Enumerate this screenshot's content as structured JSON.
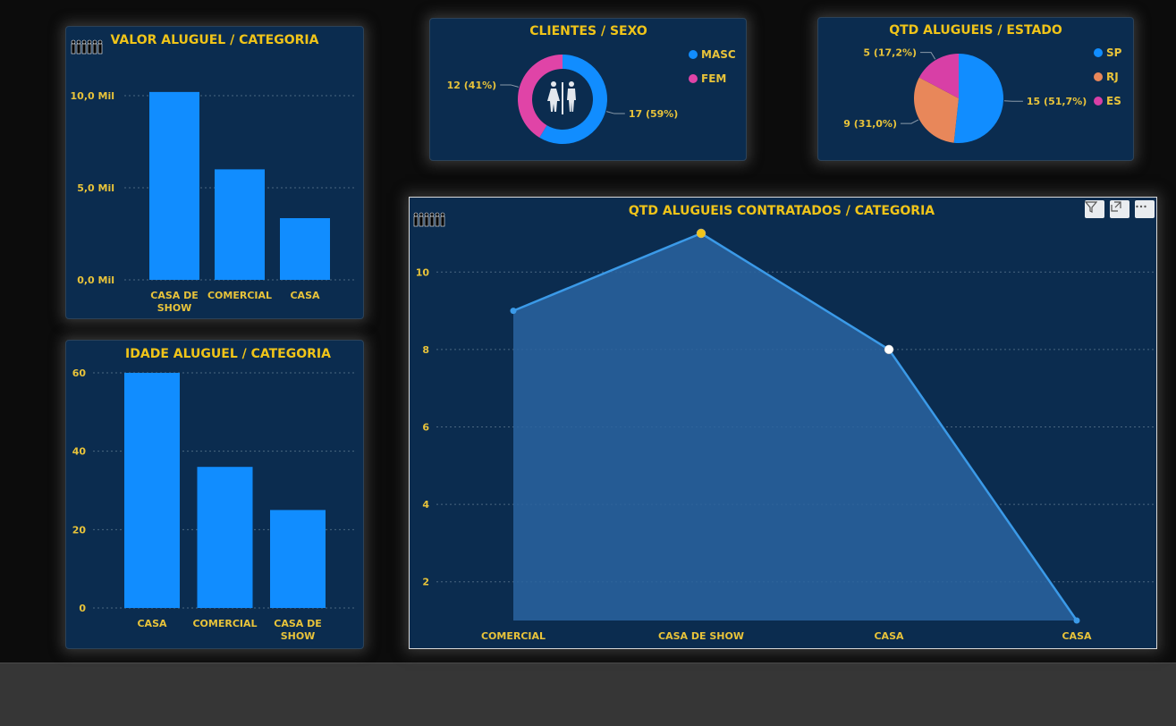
{
  "colors": {
    "title": "#f0c419",
    "label": "#e8c33a",
    "bar": "#118dff",
    "masc": "#118dff",
    "fem": "#e044a7",
    "sp": "#118dff",
    "rj": "#e8875a",
    "es": "#d83fa6",
    "area_line": "#3b9ae8",
    "area_fill": "#2a64a0",
    "card_bg": "#0b2c4f",
    "grid": "#4b6781"
  },
  "icons": {
    "people": "people-icon",
    "restroom": "restroom-icon",
    "filter": "filter-icon",
    "focus": "focus-mode-icon",
    "more": "more-options-icon"
  },
  "valor": {
    "title": "VALOR ALUGUEL / CATEGORIA",
    "chart_data": {
      "type": "bar",
      "title": "VALOR ALUGUEL / CATEGORIA",
      "categories": [
        "CASA DE SHOW",
        "COMERCIAL",
        "CASA"
      ],
      "values": [
        10200,
        6000,
        3350
      ],
      "ylim": [
        0,
        10000
      ],
      "yticks": [
        0,
        5000,
        10000
      ],
      "ytick_labels": [
        "0,0 Mil",
        "5,0 Mil",
        "10,0 Mil"
      ],
      "grid": true
    }
  },
  "idade": {
    "title": "IDADE ALUGUEL / CATEGORIA",
    "chart_data": {
      "type": "bar",
      "title": "IDADE ALUGUEL / CATEGORIA",
      "categories": [
        "CASA",
        "COMERCIAL",
        "CASA DE SHOW"
      ],
      "values": [
        60,
        36,
        25
      ],
      "ylim": [
        0,
        60
      ],
      "yticks": [
        0,
        20,
        40,
        60
      ],
      "ytick_labels": [
        "0",
        "20",
        "40",
        "60"
      ],
      "grid": true
    }
  },
  "clientes": {
    "title": "CLIENTES / SEXO",
    "chart_data": {
      "type": "pie",
      "donut": true,
      "title": "CLIENTES / SEXO",
      "slices": [
        {
          "name": "MASC",
          "value": 17,
          "label": "17 (59%)"
        },
        {
          "name": "FEM",
          "value": 12,
          "label": "12 (41%)"
        }
      ],
      "legend": "top-right"
    }
  },
  "estado": {
    "title": "QTD ALUGUEIS / ESTADO",
    "chart_data": {
      "type": "pie",
      "title": "QTD ALUGUEIS / ESTADO",
      "slices": [
        {
          "name": "SP",
          "value": 15,
          "label": "15 (51,7%)"
        },
        {
          "name": "RJ",
          "value": 9,
          "label": "9 (31,0%)"
        },
        {
          "name": "ES",
          "value": 5,
          "label": "5 (17,2%)"
        }
      ],
      "legend": "top-right"
    }
  },
  "contratados": {
    "title": "QTD ALUGUEIS CONTRATADOS / CATEGORIA",
    "chart_data": {
      "type": "area",
      "title": "QTD ALUGUEIS CONTRATADOS / CATEGORIA",
      "categories": [
        "COMERCIAL",
        "CASA DE SHOW",
        "CASA",
        "CASA"
      ],
      "values": [
        9,
        11,
        8,
        1
      ],
      "ylim": [
        1,
        11
      ],
      "yticks": [
        2,
        4,
        6,
        8,
        10
      ],
      "highlight": [
        {
          "index": 1,
          "color": "#f0c419"
        },
        {
          "index": 2,
          "color": "#ffffff"
        }
      ],
      "grid": true
    }
  }
}
